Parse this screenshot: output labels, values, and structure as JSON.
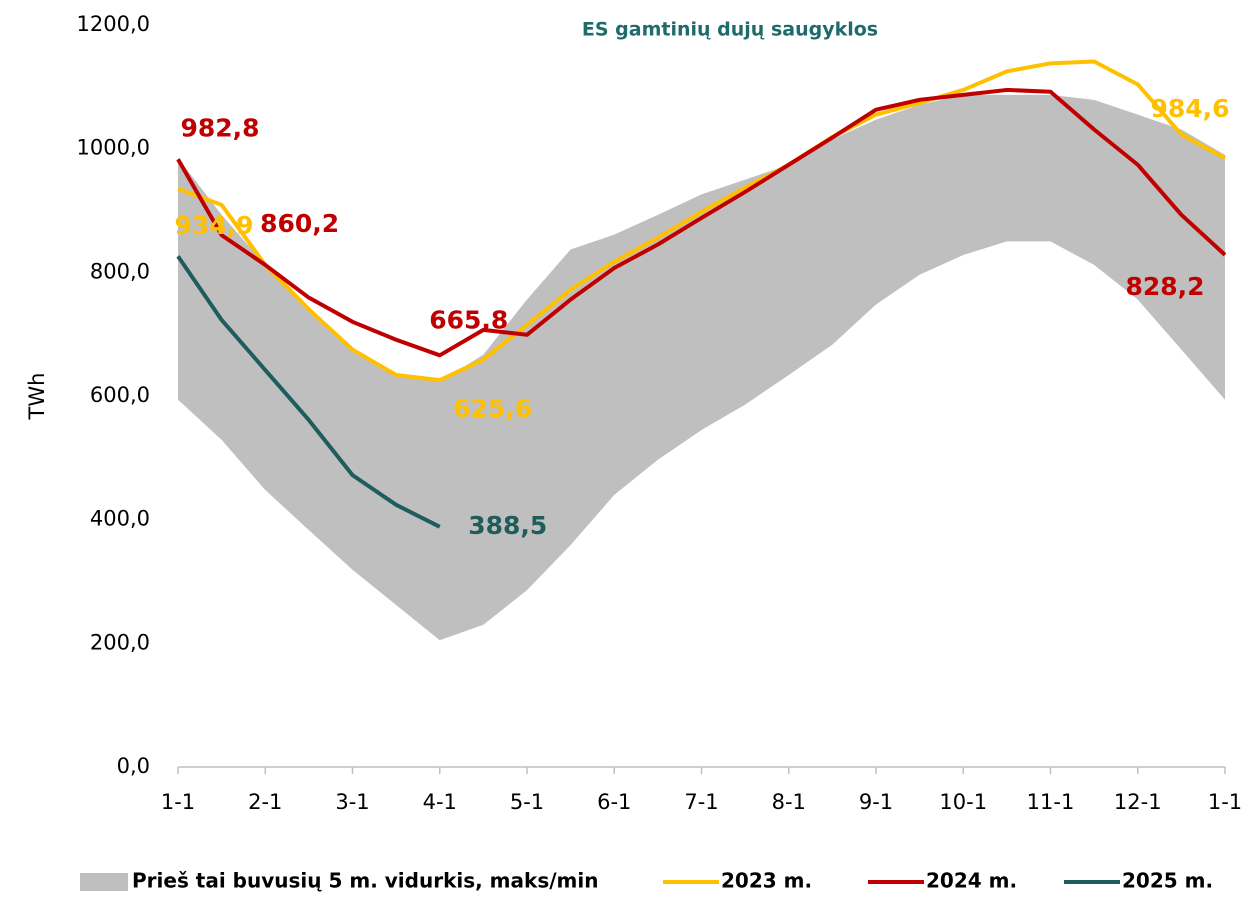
{
  "chart_data": {
    "type": "line",
    "title": "ES gamtinių dujų saugyklos",
    "y_label": "TWh",
    "categories": [
      "1-1",
      null,
      "2-1",
      null,
      "3-1",
      null,
      "4-1",
      null,
      "5-1",
      null,
      "6-1",
      null,
      "7-1",
      null,
      "8-1",
      null,
      "9-1",
      null,
      "10-1",
      null,
      "11-1",
      null,
      "12-1",
      null,
      "1-1"
    ],
    "ylim": [
      0,
      1200
    ],
    "yticks": [
      {
        "value": 0,
        "label": "0,0"
      },
      {
        "value": 200,
        "label": "200,0"
      },
      {
        "value": 400,
        "label": "400,0"
      },
      {
        "value": 600,
        "label": "600,0"
      },
      {
        "value": 800,
        "label": "800,0"
      },
      {
        "value": 1000,
        "label": "1000,0"
      },
      {
        "value": 1200,
        "label": "1200,0"
      }
    ],
    "band": {
      "name": "Prieš tai buvusių 5 m. vidurkis, maks/min",
      "color": "#bfbfbf",
      "upper": [
        985,
        893,
        812,
        740,
        675,
        634,
        623,
        667,
        756,
        837,
        861,
        893,
        926,
        950,
        974,
        1015,
        1047,
        1071,
        1087,
        1087,
        1087,
        1079,
        1055,
        1031,
        990
      ],
      "lower": [
        594,
        529,
        448,
        383,
        319,
        262,
        205,
        230,
        286,
        359,
        440,
        497,
        545,
        586,
        634,
        683,
        748,
        796,
        828,
        850,
        850,
        812,
        756,
        675,
        594
      ]
    },
    "series": [
      {
        "name": "2023 m.",
        "color": "#ffc000",
        "values": [
          934.9,
          909,
          812,
          740,
          675,
          634,
          625.6,
          659,
          715,
          772,
          817,
          856,
          898,
          937,
          974,
          1019,
          1055,
          1074,
          1095,
          1125,
          1138,
          1141,
          1104,
          1023,
          984.6
        ],
        "value_labels": [
          "934,9",
          null,
          null,
          null,
          null,
          null,
          "625,6",
          null,
          null,
          null,
          null,
          null,
          null,
          null,
          null,
          null,
          null,
          null,
          null,
          null,
          null,
          null,
          null,
          null,
          "984,6"
        ]
      },
      {
        "name": "2024 m.",
        "color": "#c00000",
        "values": [
          982.8,
          860.2,
          812,
          759,
          720,
          691,
          665.8,
          707,
          699,
          756,
          807,
          845,
          888,
          930,
          974,
          1018,
          1063,
          1079,
          1087,
          1095,
          1092,
          1031,
          974,
          893,
          828.2
        ],
        "value_labels": [
          "982,8",
          "860,2",
          null,
          null,
          null,
          null,
          "665,8",
          null,
          null,
          null,
          null,
          null,
          null,
          null,
          null,
          null,
          null,
          null,
          null,
          null,
          null,
          null,
          null,
          null,
          "828,2"
        ]
      },
      {
        "name": "2025 m.",
        "color": "#1f5c5c",
        "values": [
          826,
          723,
          642,
          561,
          472,
          424,
          388.5,
          null,
          null,
          null,
          null,
          null,
          null,
          null,
          null,
          null,
          null,
          null,
          null,
          null,
          null,
          null,
          null,
          null,
          null
        ],
        "value_labels": [
          null,
          null,
          null,
          null,
          null,
          null,
          "388,5",
          null,
          null,
          null,
          null,
          null,
          null,
          null,
          null,
          null,
          null,
          null,
          null,
          null,
          null,
          null,
          null,
          null,
          null
        ]
      }
    ]
  }
}
